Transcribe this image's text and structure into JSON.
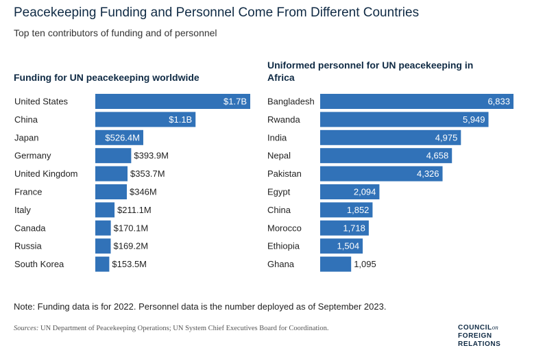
{
  "header": {
    "title": "Peacekeeping Funding and Personnel Come From Different Countries",
    "subtitle": "Top ten contributors of funding and of personnel"
  },
  "chart_data": [
    {
      "type": "bar",
      "orientation": "horizontal",
      "title": "Funding for UN peacekeeping worldwide",
      "unit": "USD",
      "categories": [
        "United States",
        "China",
        "Japan",
        "Germany",
        "United Kingdom",
        "France",
        "Italy",
        "Canada",
        "Russia",
        "South Korea"
      ],
      "values": [
        1700000000,
        1100000000,
        526400000,
        393900000,
        353700000,
        346000000,
        211100000,
        170100000,
        169200000,
        153500000
      ],
      "labels": [
        "$1.7B",
        "$1.1B",
        "$526.4M",
        "$393.9M",
        "$353.7M",
        "$346M",
        "$211.1M",
        "$170.1M",
        "$169.2M",
        "$153.5M"
      ],
      "xlim": [
        0,
        1700000000
      ],
      "grid": false,
      "color": "#3172b8"
    },
    {
      "type": "bar",
      "orientation": "horizontal",
      "title": "Uniformed personnel for UN peacekeeping in Africa",
      "categories": [
        "Bangladesh",
        "Rwanda",
        "India",
        "Nepal",
        "Pakistan",
        "Egypt",
        "China",
        "Morocco",
        "Ethiopia",
        "Ghana"
      ],
      "values": [
        6833,
        5949,
        4975,
        4658,
        4326,
        2094,
        1852,
        1718,
        1504,
        1095
      ],
      "labels": [
        "6,833",
        "5,949",
        "4,975",
        "4,658",
        "4,326",
        "2,094",
        "1,852",
        "1,718",
        "1,504",
        "1,095"
      ],
      "xlim": [
        0,
        6833
      ],
      "grid": false,
      "color": "#3172b8"
    }
  ],
  "footer": {
    "note": "Note: Funding data is for 2022. Personnel data is the number deployed as of September 2023.",
    "sources_label": "Sources:",
    "sources_text": "UN Department of Peacekeeping Operations; UN System Chief Executives Board for Coordination.",
    "logo_line1": "COUNCIL",
    "logo_on": "on",
    "logo_line2": "FOREIGN",
    "logo_line3": "RELATIONS"
  }
}
